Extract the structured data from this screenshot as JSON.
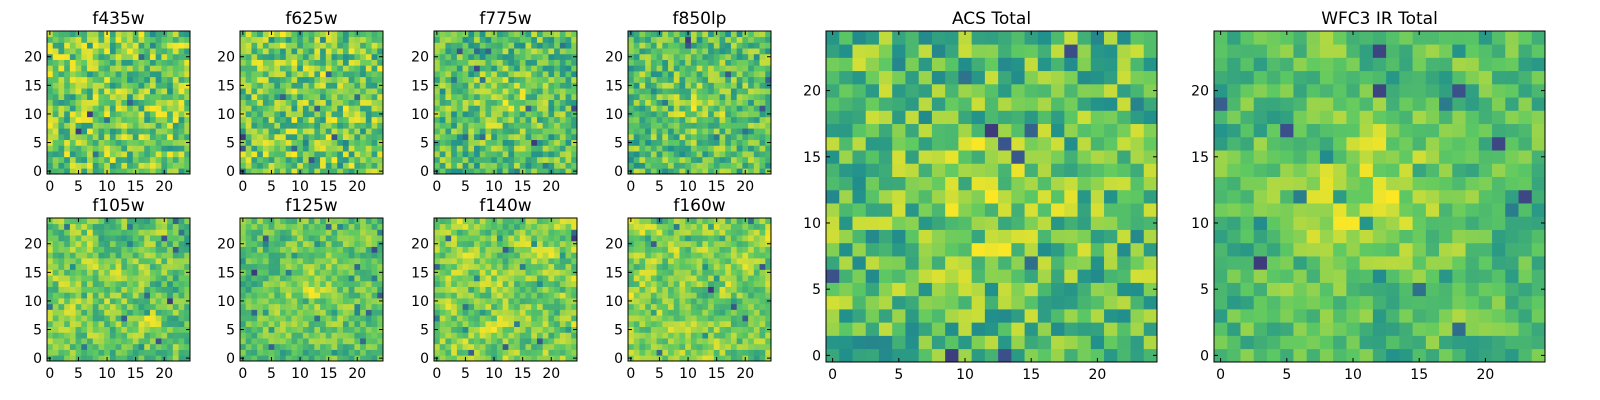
{
  "figure": {
    "colormap": "viridis",
    "colormap_stops": [
      "#440154",
      "#3b528b",
      "#21918c",
      "#5ec962",
      "#fde725"
    ]
  },
  "chart_data": [
    {
      "type": "heatmap",
      "title": "f435w",
      "grid_size": [
        25,
        25
      ],
      "x_range": [
        0,
        24
      ],
      "y_range": [
        0,
        24
      ],
      "x_ticks": [
        0,
        5,
        10,
        15,
        20
      ],
      "y_ticks": [
        0,
        5,
        10,
        15,
        20
      ],
      "structure": "uniform noise",
      "seed": 11,
      "contrast": 1.0
    },
    {
      "type": "heatmap",
      "title": "f625w",
      "grid_size": [
        25,
        25
      ],
      "x_range": [
        0,
        24
      ],
      "y_range": [
        0,
        24
      ],
      "x_ticks": [
        0,
        5,
        10,
        15,
        20
      ],
      "y_ticks": [
        0,
        5,
        10,
        15,
        20
      ],
      "structure": "uniform noise",
      "seed": 23,
      "contrast": 1.0
    },
    {
      "type": "heatmap",
      "title": "f775w",
      "grid_size": [
        25,
        25
      ],
      "x_range": [
        0,
        24
      ],
      "y_range": [
        0,
        24
      ],
      "x_ticks": [
        0,
        5,
        10,
        15,
        20
      ],
      "y_ticks": [
        0,
        5,
        10,
        15,
        20
      ],
      "structure": "noise with faint central source",
      "seed": 37,
      "contrast": 1.0
    },
    {
      "type": "heatmap",
      "title": "f850lp",
      "grid_size": [
        25,
        25
      ],
      "x_range": [
        0,
        24
      ],
      "y_range": [
        0,
        24
      ],
      "x_ticks": [
        0,
        5,
        10,
        15,
        20
      ],
      "y_ticks": [
        0,
        5,
        10,
        15,
        20
      ],
      "structure": "noise with faint central source",
      "seed": 41,
      "contrast": 1.0
    },
    {
      "type": "heatmap",
      "title": "f105w",
      "grid_size": [
        25,
        25
      ],
      "x_range": [
        0,
        24
      ],
      "y_range": [
        0,
        24
      ],
      "x_ticks": [
        0,
        5,
        10,
        15,
        20
      ],
      "y_ticks": [
        0,
        5,
        10,
        15,
        20
      ],
      "structure": "smooth noise",
      "seed": 53,
      "contrast": 1.0
    },
    {
      "type": "heatmap",
      "title": "f125w",
      "grid_size": [
        25,
        25
      ],
      "x_range": [
        0,
        24
      ],
      "y_range": [
        0,
        24
      ],
      "x_ticks": [
        0,
        5,
        10,
        15,
        20
      ],
      "y_ticks": [
        0,
        5,
        10,
        15,
        20
      ],
      "structure": "smooth noise with central source",
      "seed": 67,
      "contrast": 1.0
    },
    {
      "type": "heatmap",
      "title": "f140w",
      "grid_size": [
        25,
        25
      ],
      "x_range": [
        0,
        24
      ],
      "y_range": [
        0,
        24
      ],
      "x_ticks": [
        0,
        5,
        10,
        15,
        20
      ],
      "y_ticks": [
        0,
        5,
        10,
        15,
        20
      ],
      "structure": "smooth noise",
      "seed": 71,
      "contrast": 1.0
    },
    {
      "type": "heatmap",
      "title": "f160w",
      "grid_size": [
        25,
        25
      ],
      "x_range": [
        0,
        24
      ],
      "y_range": [
        0,
        24
      ],
      "x_ticks": [
        0,
        5,
        10,
        15,
        20
      ],
      "y_ticks": [
        0,
        5,
        10,
        15,
        20
      ],
      "structure": "smooth noise",
      "seed": 83,
      "contrast": 1.0
    },
    {
      "type": "heatmap",
      "title": "ACS Total",
      "grid_size": [
        25,
        25
      ],
      "x_range": [
        0,
        24
      ],
      "y_range": [
        0,
        24
      ],
      "x_ticks": [
        0,
        5,
        10,
        15,
        20
      ],
      "y_ticks": [
        0,
        5,
        10,
        15,
        20
      ],
      "structure": "noise with central source",
      "seed": 97,
      "contrast": 1.0
    },
    {
      "type": "heatmap",
      "title": "WFC3 IR Total",
      "grid_size": [
        25,
        25
      ],
      "x_range": [
        0,
        24
      ],
      "y_range": [
        0,
        24
      ],
      "x_ticks": [
        0,
        5,
        10,
        15,
        20
      ],
      "y_ticks": [
        0,
        5,
        10,
        15,
        20
      ],
      "structure": "smooth noise with bright central source",
      "seed": 101,
      "contrast": 1.0
    }
  ]
}
